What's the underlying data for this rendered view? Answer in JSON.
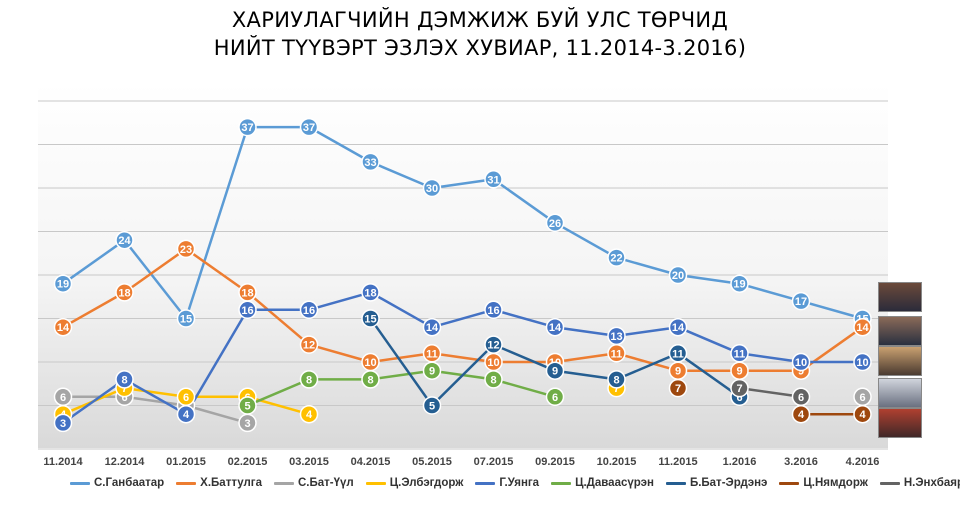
{
  "chart_data": {
    "type": "line",
    "title_line1": "ХАРИУЛАГЧИЙН ДЭМЖИЖ БУЙ УЛС ТӨРЧИД",
    "title_line2": "НИЙТ ТҮҮВЭРТ ЭЗЛЭХ ХУВИАР, 11.2014-3.2016)",
    "categories": [
      "11.2014",
      "12.2014",
      "01.2015",
      "02.2015",
      "03.2015",
      "04.2015",
      "05.2015",
      "07.2015",
      "09.2015",
      "10.2015",
      "11.2015",
      "1.2016",
      "3.2016",
      "4.2016"
    ],
    "ylim": [
      0,
      42
    ],
    "grid": true,
    "legend_position": "bottom",
    "series": [
      {
        "name": "С.Ганбаатар",
        "color": "#5B9BD5",
        "values": [
          19,
          24,
          15,
          37,
          37,
          33,
          30,
          31,
          26,
          22,
          20,
          19,
          17,
          15
        ]
      },
      {
        "name": "Х.Баттулга",
        "color": "#ED7D31",
        "values": [
          14,
          18,
          23,
          18,
          12,
          10,
          11,
          10,
          10,
          11,
          9,
          9,
          9,
          14
        ]
      },
      {
        "name": "С.Бат-Үүл",
        "color": "#A5A5A5",
        "values": [
          6,
          6,
          5,
          3,
          null,
          null,
          null,
          null,
          null,
          null,
          null,
          null,
          null,
          6
        ]
      },
      {
        "name": "Ц.Элбэгдорж",
        "color": "#FFC000",
        "values": [
          4,
          7,
          6,
          6,
          4,
          null,
          null,
          null,
          null,
          7,
          null,
          null,
          null,
          null
        ]
      },
      {
        "name": "Г.Уянга",
        "color": "#4472C4",
        "values": [
          3,
          8,
          4,
          16,
          16,
          18,
          14,
          16,
          14,
          13,
          14,
          11,
          10,
          10
        ]
      },
      {
        "name": "Ц.Даваасүрэн",
        "color": "#70AD47",
        "values": [
          null,
          null,
          null,
          5,
          8,
          8,
          9,
          8,
          6,
          null,
          null,
          null,
          null,
          null
        ]
      },
      {
        "name": "Б.Бат-Эрдэнэ",
        "color": "#255E91",
        "values": [
          null,
          null,
          null,
          null,
          null,
          15,
          5,
          12,
          9,
          8,
          11,
          6,
          null,
          null
        ]
      },
      {
        "name": "Ц.Нямдорж",
        "color": "#9E480E",
        "values": [
          null,
          null,
          null,
          null,
          null,
          null,
          null,
          null,
          null,
          null,
          7,
          null,
          4,
          4
        ]
      },
      {
        "name": "Н.Энхбаяр",
        "color": "#636363",
        "values": [
          null,
          null,
          null,
          null,
          null,
          null,
          null,
          null,
          null,
          null,
          null,
          7,
          6,
          null
        ]
      }
    ]
  }
}
